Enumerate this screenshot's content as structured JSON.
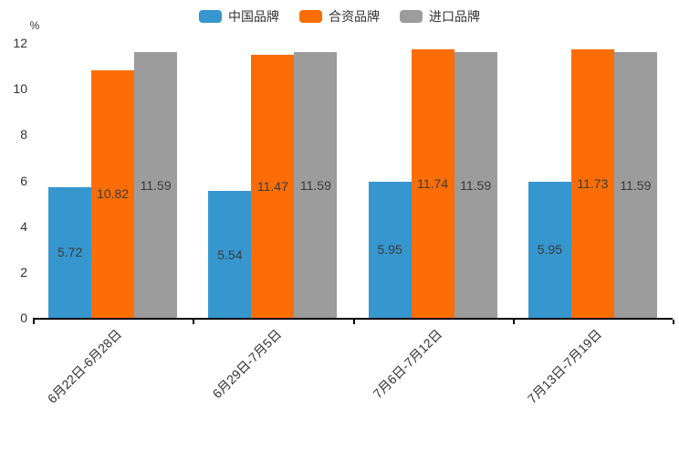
{
  "chart_data": {
    "type": "bar",
    "title": "",
    "ylabel": "%",
    "xlabel": "",
    "ylim": [
      0,
      12
    ],
    "yticks": [
      0,
      2,
      4,
      6,
      8,
      10,
      12
    ],
    "grid": false,
    "legend_position": "top",
    "value_labels": "inside-center",
    "categories": [
      "6月22日-6月28日",
      "6月29日-7月5日",
      "7月6日-7月12日",
      "7月13日-7月19日"
    ],
    "series": [
      {
        "name": "中国品牌",
        "color": "#3696CE",
        "values": [
          5.72,
          5.54,
          5.95,
          5.95
        ]
      },
      {
        "name": "合资品牌",
        "color": "#FC6E05",
        "values": [
          10.82,
          11.47,
          11.74,
          11.73
        ]
      },
      {
        "name": "进口品牌",
        "color": "#9C9C9C",
        "values": [
          11.59,
          11.59,
          11.59,
          11.59
        ]
      }
    ],
    "colors": {
      "axis_line": "#000000",
      "tick_text": "#333333",
      "value_text": "#3B3B3B"
    }
  }
}
